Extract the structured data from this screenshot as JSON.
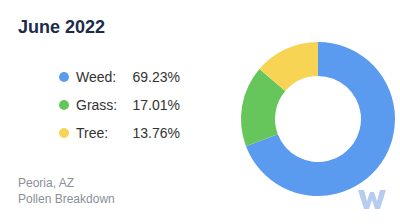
{
  "chart_data": {
    "type": "pie",
    "title": "June 2022",
    "categories": [
      "Weed:",
      "Grass:",
      "Tree:"
    ],
    "values": [
      69.23,
      17.01,
      13.76
    ],
    "value_labels": [
      "69.23%",
      "17.01%",
      "13.76%"
    ],
    "colors": [
      "#5b9bef",
      "#66c65b",
      "#f7d454"
    ],
    "legend": "left",
    "annotations": [
      "Peoria, AZ",
      "Pollen Breakdown"
    ]
  }
}
